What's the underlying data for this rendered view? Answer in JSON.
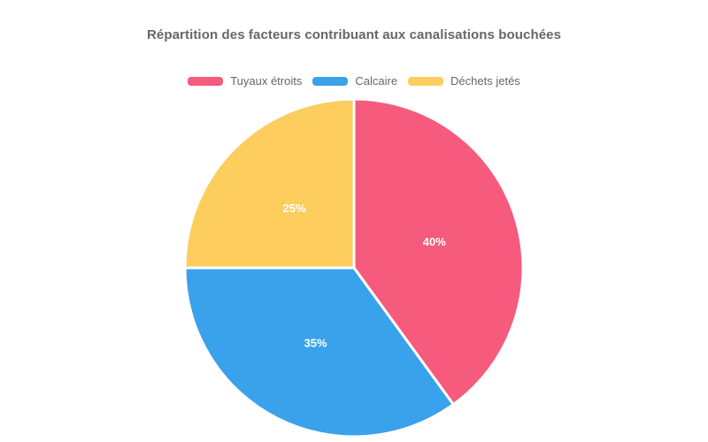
{
  "chart_data": {
    "type": "pie",
    "title": "Répartition des facteurs contribuant aux canalisations bouchées",
    "labels": [
      "Tuyaux étroits",
      "Calcaire",
      "Déchets jetés"
    ],
    "values": [
      40,
      35,
      25
    ],
    "data_labels": [
      "40%",
      "35%",
      "25%"
    ],
    "colors": [
      "#F65A7D",
      "#39A2EB",
      "#FDCD5D"
    ],
    "units": "percent",
    "start_angle_deg": 0,
    "direction": "clockwise",
    "legend_position": "top",
    "slice_border_color": "#ffffff",
    "slice_label_color": "#ffffff"
  },
  "styles": {
    "title_color": "#666666",
    "legend_text_color": "#666666",
    "background": "#ffffff"
  }
}
